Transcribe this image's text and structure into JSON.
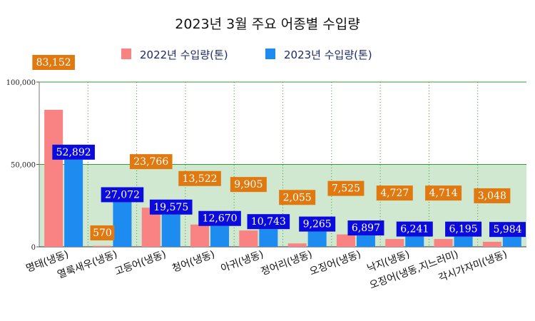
{
  "chart_data": {
    "type": "bar",
    "title": "2023년 3월 주요 어종별 수입량",
    "categories": [
      "명태(냉동)",
      "열룩새우(냉동)",
      "고등어(냉동)",
      "청어(냉동)",
      "아귀(냉동)",
      "정어리(냉동)",
      "오징어(냉동)",
      "낙지(냉동)",
      "오징어(냉동,지느러미)",
      "각시가자미(냉동)"
    ],
    "series": [
      {
        "name": "2022년 수입량(톤)",
        "color": "#f98282",
        "label_bg": "#e07a10",
        "values": [
          83152,
          570,
          23766,
          13522,
          9905,
          2055,
          7525,
          4727,
          4714,
          3048
        ],
        "labels": [
          "83,152",
          "570",
          "23,766",
          "13,522",
          "9,905",
          "2,055",
          "7,525",
          "4,727",
          "4,714",
          "3,048"
        ]
      },
      {
        "name": "2023년 수입량(톤)",
        "color": "#1e8bf0",
        "label_bg": "#0b0bdc",
        "values": [
          52892,
          27072,
          19575,
          12670,
          10743,
          9265,
          6897,
          6241,
          6195,
          5984
        ],
        "labels": [
          "52,892",
          "27,072",
          "19,575",
          "12,670",
          "10,743",
          "9,265",
          "6,897",
          "6,241",
          "6,195",
          "5,984"
        ]
      }
    ],
    "yticks": [
      0,
      50000,
      100000
    ],
    "ytick_labels": [
      "0",
      "50,000",
      "100,000"
    ],
    "ylim": [
      0,
      100000
    ],
    "grid": true,
    "legend_position": "top",
    "band_color": "#cfe8cf"
  }
}
